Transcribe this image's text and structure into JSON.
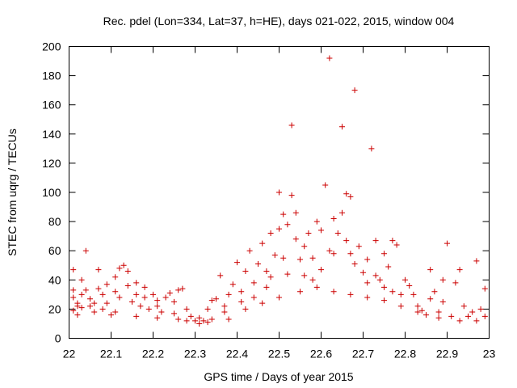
{
  "chart_data": {
    "type": "scatter",
    "title": "Rec. pdel (Lon=334, Lat=37, h=HE), days 021-022, 2015, window 004",
    "xlabel": "GPS time / Days of year 2015",
    "ylabel": "STEC from uqrg / TECUs",
    "xlim": [
      22,
      23
    ],
    "ylim": [
      0,
      200
    ],
    "xticks": [
      "22",
      "22.1",
      "22.2",
      "22.3",
      "22.4",
      "22.5",
      "22.6",
      "22.7",
      "22.8",
      "22.9",
      "23"
    ],
    "yticks": [
      "0",
      "20",
      "40",
      "60",
      "80",
      "100",
      "120",
      "140",
      "160",
      "180",
      "200"
    ],
    "marker": "plus",
    "color": "#cc0000",
    "grid": false,
    "series": [
      {
        "name": "STEC",
        "points": [
          [
            22.01,
            47
          ],
          [
            22.01,
            33
          ],
          [
            22.01,
            28
          ],
          [
            22.02,
            24
          ],
          [
            22.01,
            19
          ],
          [
            22.02,
            16
          ],
          [
            22.03,
            40
          ],
          [
            22.03,
            30
          ],
          [
            22.03,
            21
          ],
          [
            22.04,
            60
          ],
          [
            22.04,
            33
          ],
          [
            22.05,
            27
          ],
          [
            22.05,
            22
          ],
          [
            22.06,
            18
          ],
          [
            22.07,
            47
          ],
          [
            22.07,
            34
          ],
          [
            22.08,
            30
          ],
          [
            22.08,
            20
          ],
          [
            22.09,
            37
          ],
          [
            22.09,
            24
          ],
          [
            22.1,
            16
          ],
          [
            22.11,
            42
          ],
          [
            22.11,
            32
          ],
          [
            22.12,
            28
          ],
          [
            22.12,
            48
          ],
          [
            22.13,
            50
          ],
          [
            22.14,
            46
          ],
          [
            22.14,
            36
          ],
          [
            22.15,
            25
          ],
          [
            22.16,
            38
          ],
          [
            22.16,
            30
          ],
          [
            22.17,
            22
          ],
          [
            22.18,
            35
          ],
          [
            22.18,
            28
          ],
          [
            22.19,
            20
          ],
          [
            22.2,
            30
          ],
          [
            22.21,
            26
          ],
          [
            22.21,
            22
          ],
          [
            22.22,
            18
          ],
          [
            22.23,
            28
          ],
          [
            22.24,
            31
          ],
          [
            22.25,
            25
          ],
          [
            22.25,
            17
          ],
          [
            22.26,
            33
          ],
          [
            22.27,
            34
          ],
          [
            22.28,
            20
          ],
          [
            22.28,
            12
          ],
          [
            22.29,
            15
          ],
          [
            22.3,
            12
          ],
          [
            22.31,
            10
          ],
          [
            22.31,
            14
          ],
          [
            22.32,
            12
          ],
          [
            22.33,
            20
          ],
          [
            22.34,
            26
          ],
          [
            22.34,
            13
          ],
          [
            22.35,
            27
          ],
          [
            22.36,
            43
          ],
          [
            22.37,
            22
          ],
          [
            22.37,
            18
          ],
          [
            22.38,
            30
          ],
          [
            22.39,
            37
          ],
          [
            22.4,
            52
          ],
          [
            22.41,
            32
          ],
          [
            22.41,
            25
          ],
          [
            22.42,
            46
          ],
          [
            22.43,
            60
          ],
          [
            22.44,
            28
          ],
          [
            22.44,
            38
          ],
          [
            22.45,
            51
          ],
          [
            22.46,
            65
          ],
          [
            22.47,
            46
          ],
          [
            22.47,
            35
          ],
          [
            22.48,
            72
          ],
          [
            22.48,
            42
          ],
          [
            22.49,
            57
          ],
          [
            22.5,
            100
          ],
          [
            22.5,
            75
          ],
          [
            22.51,
            85
          ],
          [
            22.51,
            55
          ],
          [
            22.52,
            78
          ],
          [
            22.52,
            44
          ],
          [
            22.53,
            146
          ],
          [
            22.53,
            98
          ],
          [
            22.54,
            86
          ],
          [
            22.54,
            68
          ],
          [
            22.55,
            54
          ],
          [
            22.56,
            63
          ],
          [
            22.56,
            43
          ],
          [
            22.57,
            72
          ],
          [
            22.58,
            55
          ],
          [
            22.58,
            40
          ],
          [
            22.59,
            80
          ],
          [
            22.6,
            74
          ],
          [
            22.6,
            47
          ],
          [
            22.61,
            105
          ],
          [
            22.62,
            60
          ],
          [
            22.62,
            192
          ],
          [
            22.63,
            82
          ],
          [
            22.63,
            58
          ],
          [
            22.64,
            72
          ],
          [
            22.65,
            145
          ],
          [
            22.65,
            86
          ],
          [
            22.66,
            99
          ],
          [
            22.66,
            67
          ],
          [
            22.67,
            97
          ],
          [
            22.67,
            58
          ],
          [
            22.68,
            170
          ],
          [
            22.68,
            51
          ],
          [
            22.69,
            63
          ],
          [
            22.7,
            45
          ],
          [
            22.71,
            38
          ],
          [
            22.71,
            54
          ],
          [
            22.72,
            130
          ],
          [
            22.73,
            67
          ],
          [
            22.73,
            43
          ],
          [
            22.74,
            40
          ],
          [
            22.75,
            58
          ],
          [
            22.75,
            35
          ],
          [
            22.76,
            49
          ],
          [
            22.77,
            67
          ],
          [
            22.77,
            32
          ],
          [
            22.78,
            64
          ],
          [
            22.79,
            30
          ],
          [
            22.8,
            40
          ],
          [
            22.81,
            36
          ],
          [
            22.82,
            30
          ],
          [
            22.83,
            22
          ],
          [
            22.84,
            19
          ],
          [
            22.85,
            16
          ],
          [
            22.86,
            47
          ],
          [
            22.86,
            27
          ],
          [
            22.87,
            32
          ],
          [
            22.88,
            18
          ],
          [
            22.89,
            40
          ],
          [
            22.89,
            25
          ],
          [
            22.9,
            65
          ],
          [
            22.91,
            15
          ],
          [
            22.92,
            38
          ],
          [
            22.93,
            47
          ],
          [
            22.94,
            22
          ],
          [
            22.95,
            15
          ],
          [
            22.96,
            18
          ],
          [
            22.97,
            53
          ],
          [
            22.98,
            20
          ],
          [
            22.99,
            34
          ],
          [
            22.99,
            15
          ],
          [
            22.02,
            22
          ],
          [
            22.06,
            24
          ],
          [
            22.11,
            18
          ],
          [
            22.16,
            15
          ],
          [
            22.21,
            14
          ],
          [
            22.26,
            13
          ],
          [
            22.33,
            11
          ],
          [
            22.38,
            13
          ],
          [
            22.42,
            20
          ],
          [
            22.46,
            24
          ],
          [
            22.5,
            28
          ],
          [
            22.55,
            32
          ],
          [
            22.59,
            35
          ],
          [
            22.63,
            32
          ],
          [
            22.67,
            30
          ],
          [
            22.71,
            28
          ],
          [
            22.75,
            26
          ],
          [
            22.79,
            22
          ],
          [
            22.83,
            18
          ],
          [
            22.88,
            14
          ],
          [
            22.93,
            12
          ],
          [
            22.97,
            12
          ]
        ]
      }
    ]
  }
}
